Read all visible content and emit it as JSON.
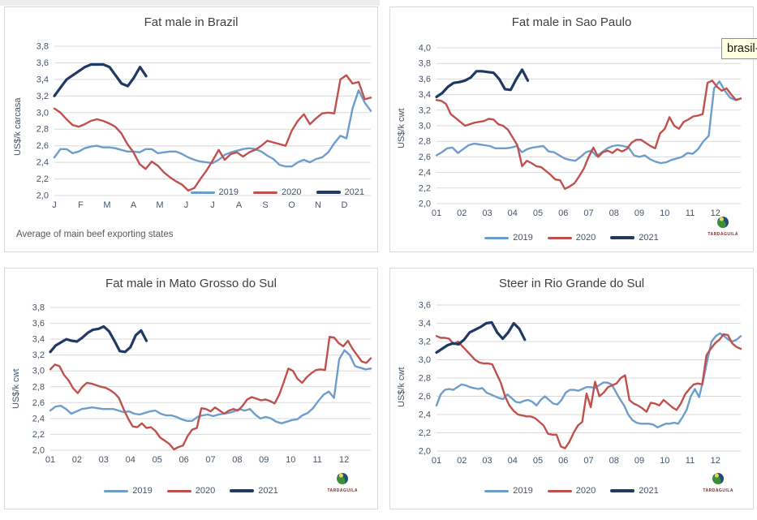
{
  "tooltip": {
    "text": "brasil-r"
  },
  "logo": {
    "text": "TARDAGUILA"
  },
  "colors": {
    "y2019": "#6D9DCB",
    "y2020": "#C0504D",
    "y2021": "#1F3864",
    "grid": "#d9d9d9"
  },
  "chart_data": [
    {
      "type": "line",
      "title": "Fat male in Brazil",
      "ylabel": "US$/k carcasa",
      "xlabel": "",
      "footnote": "Average of main beef exporting states",
      "ymin": 2.0,
      "ymax": 3.8,
      "ystep": 0.2,
      "grid": "horizontal",
      "legend_position": "inside-right",
      "xticks": [
        "J",
        "F",
        "M",
        "A",
        "M",
        "J",
        "J",
        "A",
        "S",
        "O",
        "N",
        "D"
      ],
      "series": [
        {
          "name": "2019",
          "color": "#6D9DCB",
          "width": 2.4,
          "span": 1,
          "values": [
            2.46,
            2.56,
            2.56,
            2.51,
            2.53,
            2.57,
            2.59,
            2.6,
            2.58,
            2.58,
            2.57,
            2.55,
            2.53,
            2.53,
            2.52,
            2.56,
            2.56,
            2.51,
            2.52,
            2.53,
            2.53,
            2.5,
            2.46,
            2.43,
            2.41,
            2.4,
            2.39,
            2.43,
            2.49,
            2.52,
            2.54,
            2.56,
            2.57,
            2.56,
            2.53,
            2.48,
            2.44,
            2.37,
            2.35,
            2.35,
            2.4,
            2.43,
            2.4,
            2.44,
            2.46,
            2.52,
            2.63,
            2.72,
            2.69,
            3.05,
            3.27,
            3.12,
            3.02
          ]
        },
        {
          "name": "2020",
          "color": "#C0504D",
          "width": 2.4,
          "span": 1,
          "values": [
            3.05,
            3.0,
            2.92,
            2.85,
            2.83,
            2.86,
            2.9,
            2.92,
            2.9,
            2.87,
            2.83,
            2.75,
            2.62,
            2.52,
            2.38,
            2.32,
            2.41,
            2.36,
            2.28,
            2.22,
            2.17,
            2.13,
            2.06,
            2.09,
            2.2,
            2.3,
            2.42,
            2.55,
            2.43,
            2.5,
            2.52,
            2.47,
            2.52,
            2.55,
            2.6,
            2.66,
            2.64,
            2.62,
            2.6,
            2.78,
            2.9,
            2.98,
            2.86,
            2.93,
            2.99,
            3.0,
            2.99,
            3.4,
            3.45,
            3.35,
            3.37,
            3.16,
            3.18
          ]
        },
        {
          "name": "2021",
          "color": "#1F3864",
          "width": 3.2,
          "span": 0.29,
          "values": [
            3.2,
            3.3,
            3.4,
            3.45,
            3.5,
            3.55,
            3.58,
            3.58,
            3.58,
            3.55,
            3.45,
            3.35,
            3.32,
            3.42,
            3.55,
            3.44
          ]
        }
      ]
    },
    {
      "type": "line",
      "title": "Fat male in Sao Paulo",
      "ylabel": "US$/k cwt",
      "xlabel": "",
      "ymin": 2.0,
      "ymax": 4.0,
      "ystep": 0.2,
      "grid": "horizontal",
      "legend_position": "bottom",
      "xticks": [
        "01",
        "02",
        "03",
        "04",
        "05",
        "06",
        "07",
        "08",
        "09",
        "10",
        "11",
        "12"
      ],
      "series": [
        {
          "name": "2019",
          "color": "#6D9DCB",
          "width": 2.4,
          "span": 1,
          "values": [
            2.62,
            2.66,
            2.71,
            2.72,
            2.65,
            2.7,
            2.75,
            2.77,
            2.76,
            2.75,
            2.74,
            2.71,
            2.71,
            2.71,
            2.72,
            2.74,
            2.66,
            2.7,
            2.72,
            2.73,
            2.74,
            2.67,
            2.66,
            2.62,
            2.58,
            2.56,
            2.55,
            2.6,
            2.66,
            2.68,
            2.61,
            2.66,
            2.71,
            2.74,
            2.75,
            2.74,
            2.72,
            2.62,
            2.6,
            2.62,
            2.57,
            2.54,
            2.52,
            2.53,
            2.56,
            2.58,
            2.6,
            2.65,
            2.64,
            2.7,
            2.8,
            2.87,
            3.48,
            3.57,
            3.45,
            3.36,
            3.33,
            3.35
          ]
        },
        {
          "name": "2020",
          "color": "#C0504D",
          "width": 2.4,
          "span": 1,
          "values": [
            3.33,
            3.32,
            3.28,
            3.15,
            3.1,
            3.05,
            3.0,
            3.02,
            3.04,
            3.05,
            3.06,
            3.09,
            3.08,
            3.02,
            3.0,
            2.95,
            2.85,
            2.75,
            2.48,
            2.55,
            2.52,
            2.48,
            2.47,
            2.42,
            2.37,
            2.31,
            2.3,
            2.19,
            2.22,
            2.26,
            2.35,
            2.45,
            2.6,
            2.72,
            2.6,
            2.66,
            2.68,
            2.65,
            2.7,
            2.67,
            2.7,
            2.78,
            2.82,
            2.82,
            2.78,
            2.74,
            2.71,
            2.9,
            2.96,
            3.11,
            3.0,
            2.96,
            3.05,
            3.08,
            3.12,
            3.13,
            3.15,
            3.55,
            3.58,
            3.5,
            3.45,
            3.48,
            3.4,
            3.33,
            3.35
          ]
        },
        {
          "name": "2021",
          "color": "#1F3864",
          "width": 3.2,
          "span": 0.3,
          "values": [
            3.37,
            3.42,
            3.5,
            3.55,
            3.56,
            3.58,
            3.62,
            3.7,
            3.7,
            3.69,
            3.68,
            3.6,
            3.47,
            3.46,
            3.6,
            3.72,
            3.58
          ]
        }
      ]
    },
    {
      "type": "line",
      "title": "Fat male in Mato Grosso do Sul",
      "ylabel": "US$/k cwt",
      "xlabel": "",
      "ymin": 2.0,
      "ymax": 3.8,
      "ystep": 0.2,
      "grid": "horizontal",
      "legend_position": "bottom",
      "xticks": [
        "01",
        "02",
        "03",
        "04",
        "05",
        "06",
        "07",
        "08",
        "09",
        "10",
        "11",
        "12"
      ],
      "series": [
        {
          "name": "2019",
          "color": "#6D9DCB",
          "width": 2.4,
          "span": 1,
          "values": [
            2.5,
            2.55,
            2.56,
            2.52,
            2.46,
            2.49,
            2.52,
            2.53,
            2.54,
            2.53,
            2.52,
            2.52,
            2.52,
            2.5,
            2.48,
            2.49,
            2.46,
            2.45,
            2.47,
            2.49,
            2.5,
            2.46,
            2.44,
            2.44,
            2.42,
            2.39,
            2.37,
            2.37,
            2.42,
            2.44,
            2.45,
            2.43,
            2.45,
            2.46,
            2.47,
            2.49,
            2.52,
            2.5,
            2.52,
            2.45,
            2.4,
            2.42,
            2.4,
            2.36,
            2.34,
            2.36,
            2.38,
            2.39,
            2.44,
            2.47,
            2.53,
            2.62,
            2.7,
            2.74,
            2.66,
            3.15,
            3.26,
            3.2,
            3.06,
            3.04,
            3.02,
            3.03
          ]
        },
        {
          "name": "2020",
          "color": "#C0504D",
          "width": 2.4,
          "span": 1,
          "values": [
            3.02,
            3.08,
            3.06,
            2.95,
            2.88,
            2.78,
            2.72,
            2.8,
            2.85,
            2.84,
            2.82,
            2.8,
            2.79,
            2.76,
            2.72,
            2.66,
            2.52,
            2.4,
            2.3,
            2.29,
            2.34,
            2.28,
            2.29,
            2.24,
            2.16,
            2.12,
            2.08,
            2.01,
            2.04,
            2.06,
            2.18,
            2.26,
            2.28,
            2.53,
            2.52,
            2.49,
            2.54,
            2.5,
            2.46,
            2.5,
            2.52,
            2.5,
            2.56,
            2.64,
            2.67,
            2.65,
            2.63,
            2.64,
            2.62,
            2.59,
            2.7,
            2.86,
            3.03,
            3.0,
            2.9,
            2.85,
            2.92,
            2.97,
            3.01,
            3.02,
            3.01,
            3.43,
            3.42,
            3.35,
            3.31,
            3.38,
            3.28,
            3.2,
            3.12,
            3.1,
            3.16
          ]
        },
        {
          "name": "2021",
          "color": "#1F3864",
          "width": 3.2,
          "span": 0.3,
          "values": [
            3.24,
            3.32,
            3.36,
            3.4,
            3.38,
            3.37,
            3.42,
            3.48,
            3.52,
            3.53,
            3.56,
            3.5,
            3.38,
            3.25,
            3.24,
            3.3,
            3.45,
            3.51,
            3.38
          ]
        }
      ]
    },
    {
      "type": "line",
      "title": "Steer in Rio Grande do Sul",
      "ylabel": "US$/k cwt",
      "xlabel": "",
      "ymin": 2.0,
      "ymax": 3.6,
      "ystep": 0.2,
      "grid": "horizontal",
      "legend_position": "bottom",
      "xticks": [
        "01",
        "02",
        "03",
        "04",
        "05",
        "06",
        "07",
        "08",
        "09",
        "10",
        "11",
        "12"
      ],
      "series": [
        {
          "name": "2019",
          "color": "#6D9DCB",
          "width": 2.4,
          "span": 1,
          "values": [
            2.5,
            2.62,
            2.67,
            2.68,
            2.67,
            2.7,
            2.73,
            2.72,
            2.7,
            2.69,
            2.68,
            2.69,
            2.64,
            2.62,
            2.6,
            2.58,
            2.57,
            2.62,
            2.58,
            2.54,
            2.53,
            2.55,
            2.56,
            2.54,
            2.5,
            2.56,
            2.6,
            2.56,
            2.52,
            2.51,
            2.56,
            2.64,
            2.67,
            2.67,
            2.66,
            2.68,
            2.7,
            2.7,
            2.69,
            2.72,
            2.75,
            2.75,
            2.73,
            2.65,
            2.57,
            2.5,
            2.4,
            2.34,
            2.31,
            2.3,
            2.3,
            2.3,
            2.29,
            2.26,
            2.28,
            2.3,
            2.3,
            2.31,
            2.3,
            2.37,
            2.45,
            2.6,
            2.68,
            2.59,
            2.78,
            3.0,
            3.2,
            3.26,
            3.29,
            3.26,
            3.22,
            3.2,
            3.22,
            3.26
          ]
        },
        {
          "name": "2020",
          "color": "#C0504D",
          "width": 2.4,
          "span": 1,
          "values": [
            3.26,
            3.24,
            3.24,
            3.23,
            3.17,
            3.2,
            3.15,
            3.1,
            3.05,
            3.0,
            2.97,
            2.96,
            2.96,
            2.95,
            2.85,
            2.75,
            2.6,
            2.5,
            2.44,
            2.4,
            2.39,
            2.38,
            2.38,
            2.36,
            2.32,
            2.28,
            2.19,
            2.18,
            2.18,
            2.05,
            2.03,
            2.1,
            2.2,
            2.28,
            2.32,
            2.63,
            2.48,
            2.76,
            2.6,
            2.64,
            2.7,
            2.72,
            2.74,
            2.8,
            2.83,
            2.56,
            2.52,
            2.5,
            2.47,
            2.43,
            2.53,
            2.52,
            2.5,
            2.56,
            2.52,
            2.48,
            2.45,
            2.52,
            2.62,
            2.68,
            2.73,
            2.74,
            2.73,
            3.05,
            3.12,
            3.18,
            3.22,
            3.28,
            3.27,
            3.18,
            3.14,
            3.12
          ]
        },
        {
          "name": "2021",
          "color": "#1F3864",
          "width": 3.2,
          "span": 0.29,
          "values": [
            3.08,
            3.12,
            3.16,
            3.18,
            3.17,
            3.22,
            3.3,
            3.33,
            3.36,
            3.4,
            3.41,
            3.3,
            3.23,
            3.3,
            3.4,
            3.34,
            3.22
          ]
        }
      ]
    }
  ]
}
